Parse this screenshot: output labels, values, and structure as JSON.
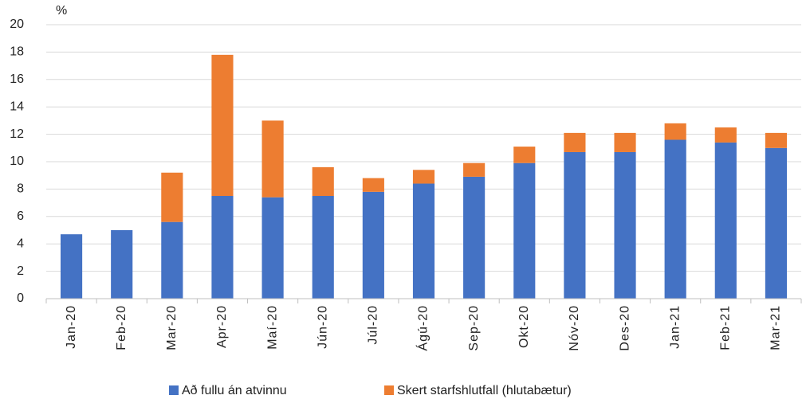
{
  "chart_data": {
    "type": "stacked_bar",
    "y_unit_label": "%",
    "categories": [
      "Jan-20",
      "Feb-20",
      "Mar-20",
      "Apr-20",
      "Maí-20",
      "Jún-20",
      "Júl-20",
      "Ágú-20",
      "Sep-20",
      "Okt-20",
      "Nóv-20",
      "Des-20",
      "Jan-21",
      "Feb-21",
      "Mar-21"
    ],
    "series": [
      {
        "name": "Að fullu án atvinnu",
        "color": "#4472c4",
        "values": [
          4.7,
          5.0,
          5.6,
          7.5,
          7.4,
          7.5,
          7.8,
          8.4,
          8.9,
          9.9,
          10.7,
          10.7,
          11.6,
          11.4,
          11.0
        ]
      },
      {
        "name": "Skert starfshlutfall (hlutabætur)",
        "color": "#ed7d31",
        "values": [
          0,
          0,
          3.6,
          10.3,
          5.6,
          2.1,
          1.0,
          1.0,
          1.0,
          1.2,
          1.4,
          1.4,
          1.2,
          1.1,
          1.1
        ]
      }
    ],
    "ylim": [
      0,
      20
    ],
    "yticks": [
      0,
      2,
      4,
      6,
      8,
      10,
      12,
      14,
      16,
      18,
      20
    ],
    "grid": true,
    "legend": "bottom"
  }
}
